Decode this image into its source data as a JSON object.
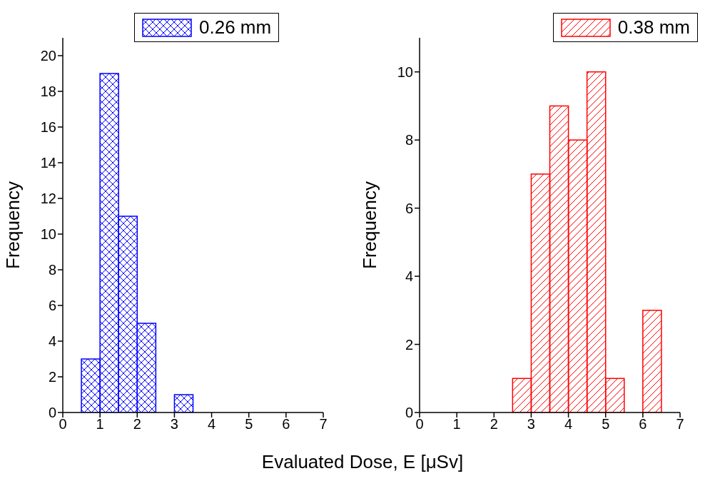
{
  "chart_data": [
    {
      "type": "histogram",
      "ylabel": "Frequency",
      "xlabel": "Evaluated Dose, E [μSv]",
      "bins": [
        0.5,
        1,
        1.5,
        2,
        2.5,
        3,
        3.5
      ],
      "series": [
        {
          "name": "0.26 mm",
          "color": "#0000ff",
          "values": [
            3,
            19,
            11,
            5,
            0,
            1
          ]
        }
      ],
      "xlim": [
        0,
        7
      ],
      "xticks": [
        0,
        1,
        2,
        3,
        4,
        5,
        6,
        7
      ],
      "ylim": [
        0,
        21
      ],
      "yticks": [
        0,
        2,
        4,
        6,
        8,
        10,
        12,
        14,
        16,
        18,
        20
      ],
      "legend": "top",
      "grid": false
    },
    {
      "type": "histogram",
      "ylabel": "Frequency",
      "bins": [
        2.5,
        3,
        3.5,
        4,
        4.5,
        5,
        5.5,
        6,
        6.5
      ],
      "series": [
        {
          "name": "0.38 mm",
          "color": "#ff0000",
          "values": [
            1,
            7,
            9,
            8,
            10,
            1,
            0,
            3
          ]
        }
      ],
      "xlim": [
        0,
        7
      ],
      "xticks": [
        0,
        1,
        2,
        3,
        4,
        5,
        6,
        7
      ],
      "ylim": [
        0,
        11
      ],
      "yticks": [
        0,
        2,
        4,
        6,
        8,
        10
      ],
      "legend": "top right",
      "grid": false
    }
  ]
}
